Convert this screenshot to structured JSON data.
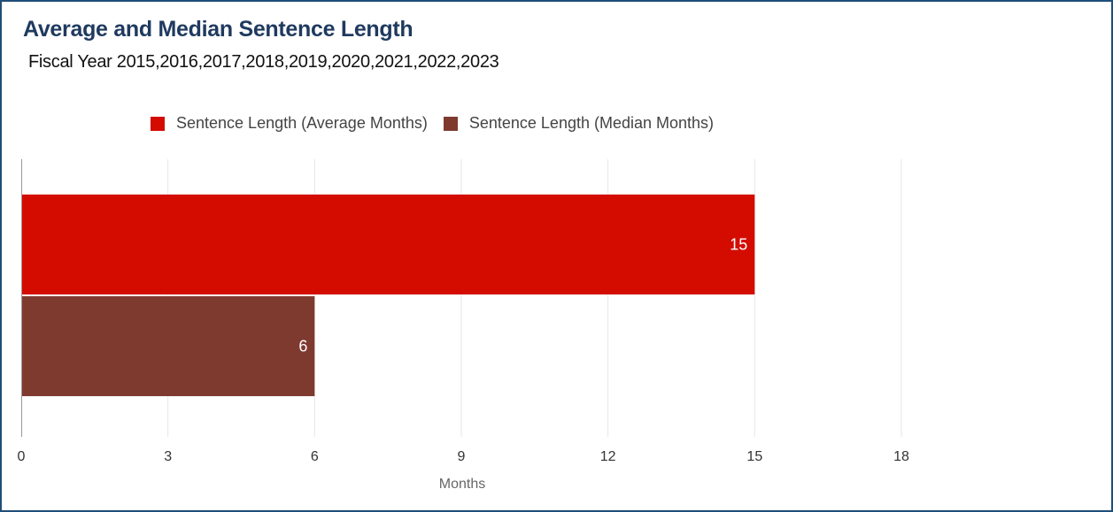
{
  "chart_data": {
    "type": "bar",
    "orientation": "horizontal",
    "title": "Average and Median Sentence Length",
    "subtitle": "Fiscal Year 2015,2016,2017,2018,2019,2020,2021,2022,2023",
    "xlabel": "Months",
    "ylabel": "",
    "xlim": [
      0,
      22.5
    ],
    "xticks": [
      "0",
      "3",
      "6",
      "9",
      "12",
      "15",
      "18"
    ],
    "grid": "vertical",
    "legend_placement": "top",
    "series": [
      {
        "name": "Sentence Length (Average Months)",
        "values": [
          15
        ],
        "color": "#d40c00",
        "label": "15"
      },
      {
        "name": "Sentence Length (Median Months)",
        "values": [
          6
        ],
        "color": "#7f3a30",
        "label": "6"
      }
    ]
  }
}
